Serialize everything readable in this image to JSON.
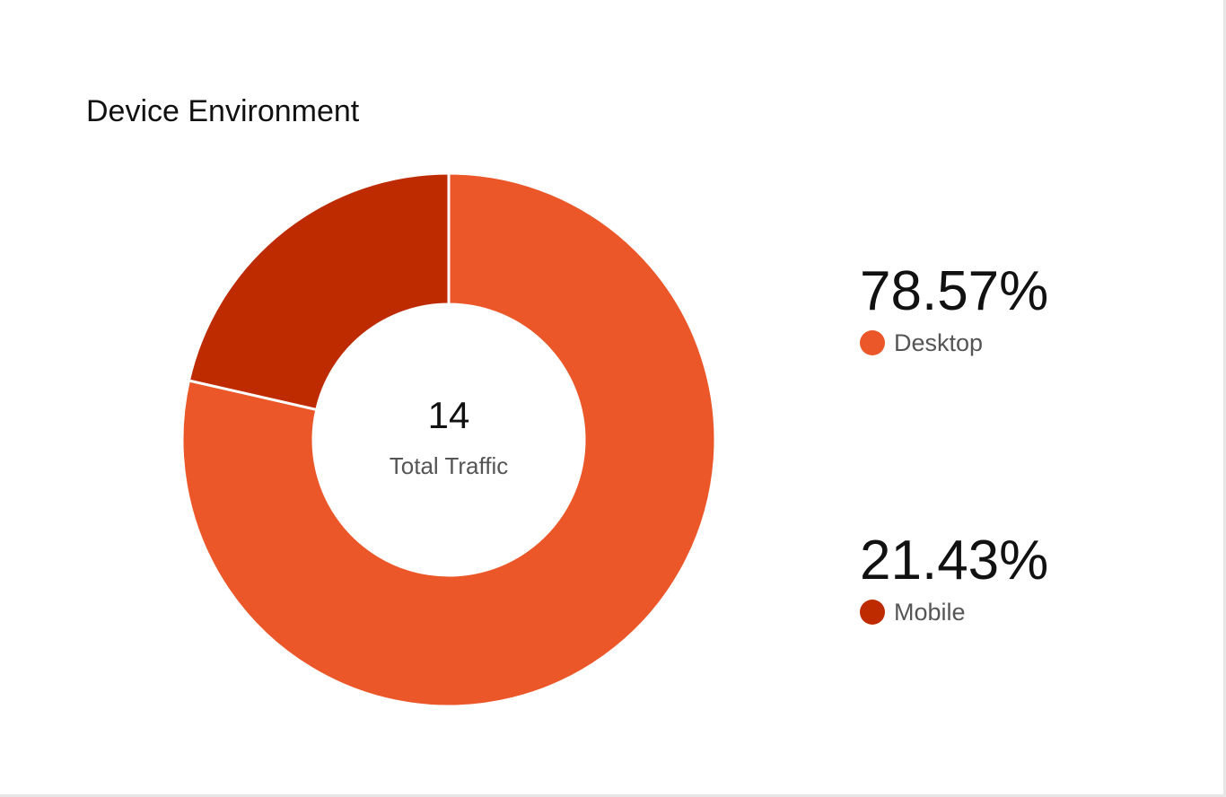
{
  "card": {
    "title": "Device Environment"
  },
  "chart_data": {
    "type": "pie",
    "style": "donut",
    "title": "Device Environment",
    "center_value": "14",
    "center_label": "Total Traffic",
    "slices": [
      {
        "name": "Desktop",
        "value": 78.57,
        "display": "78.57%",
        "color": "#EC572A"
      },
      {
        "name": "Mobile",
        "value": 21.43,
        "display": "21.43%",
        "color": "#BE2B01"
      }
    ],
    "legend_placement": "right"
  },
  "legend": {
    "items": [
      {
        "value": "78.57%",
        "label": "Desktop",
        "color": "#EC572A"
      },
      {
        "value": "21.43%",
        "label": "Mobile",
        "color": "#BE2B01"
      }
    ]
  }
}
